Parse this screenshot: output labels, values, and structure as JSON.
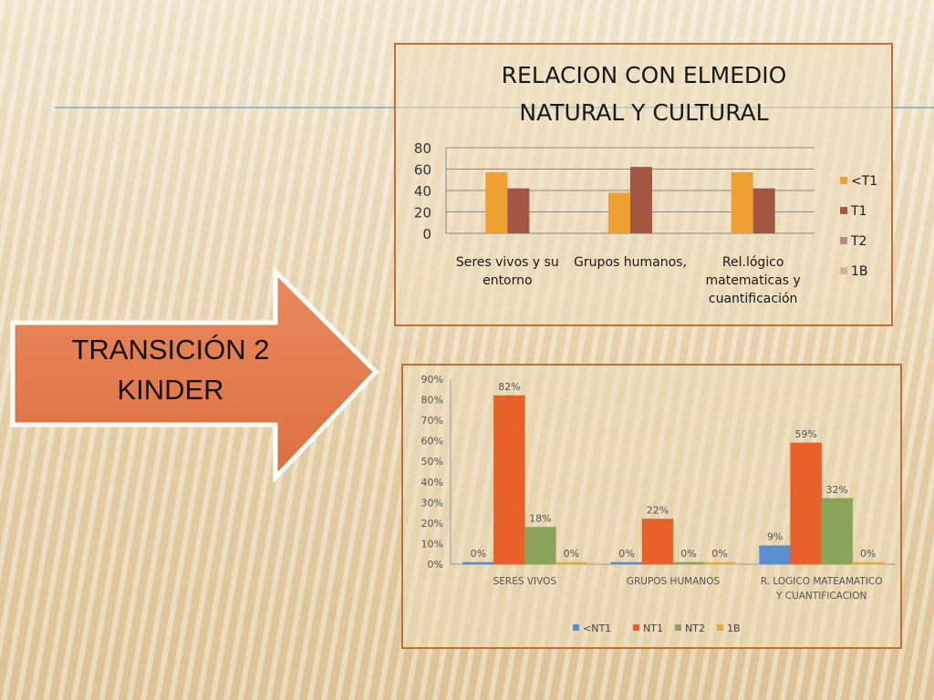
{
  "slide": {
    "arrow_line1": "TRANSICIÓN 2",
    "arrow_line2": "KINDER"
  },
  "chart_data": [
    {
      "type": "bar",
      "title_lines": [
        "RELACION CON ELMEDIO",
        "NATURAL Y CULTURAL"
      ],
      "categories": [
        [
          "Seres vivos y su",
          "entorno"
        ],
        [
          "Grupos humanos,"
        ],
        [
          "Rel.lógico",
          "matematicas y",
          "cuantificación"
        ]
      ],
      "series": [
        {
          "name": "<T1",
          "color": "#eea132",
          "values": [
            57,
            38,
            57
          ]
        },
        {
          "name": "T1",
          "color": "#a35642",
          "values": [
            42,
            62,
            42
          ]
        },
        {
          "name": "T2",
          "color": "#b78a8e",
          "values": [
            0,
            0,
            0
          ]
        },
        {
          "name": "1B",
          "color": "#d6b38a",
          "values": [
            0,
            0,
            0
          ]
        }
      ],
      "ylim": [
        0,
        80
      ],
      "yticks": [
        0,
        20,
        40,
        60,
        80
      ],
      "grid": true,
      "legend": "right"
    },
    {
      "type": "bar",
      "categories": [
        [
          "SERES VIVOS"
        ],
        [
          "GRUPOS HUMANOS"
        ],
        [
          "R. LOGICO MATEAMATICO",
          "Y CUANTIFICACION"
        ]
      ],
      "series": [
        {
          "name": "<NT1",
          "color": "#5a8fcf",
          "values": [
            0,
            0,
            9
          ]
        },
        {
          "name": "NT1",
          "color": "#e8612a",
          "values": [
            82,
            22,
            59
          ]
        },
        {
          "name": "NT2",
          "color": "#8aa55a",
          "values": [
            18,
            0,
            32
          ]
        },
        {
          "name": "1B",
          "color": "#e3ab3c",
          "values": [
            0,
            0,
            0
          ]
        }
      ],
      "ylim": [
        0,
        90
      ],
      "yticks": [
        "0%",
        "10%",
        "20%",
        "30%",
        "40%",
        "50%",
        "60%",
        "70%",
        "80%",
        "90%"
      ],
      "data_labels": true,
      "legend": "bottom"
    }
  ]
}
